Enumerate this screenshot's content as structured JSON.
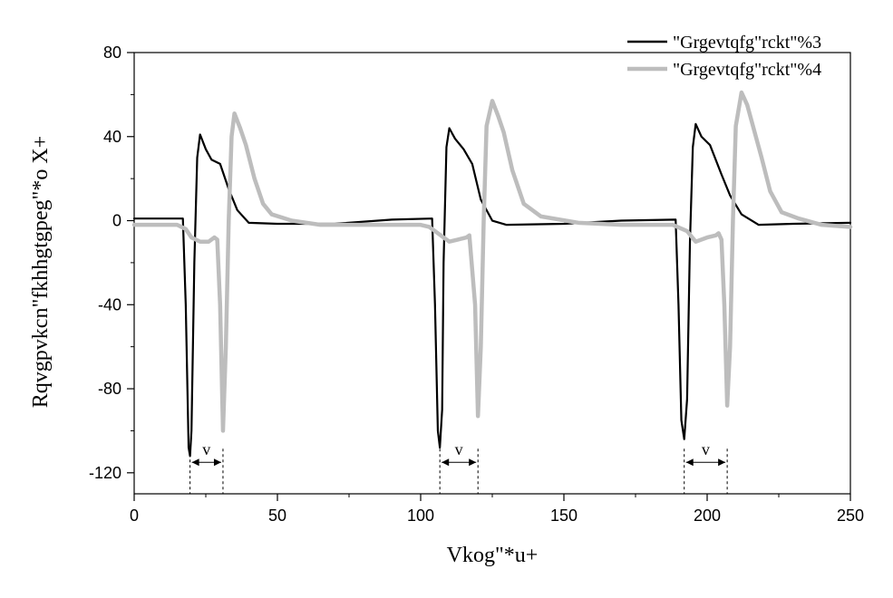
{
  "chart_data": {
    "type": "line",
    "title": "",
    "xlabel": "Vkog\"*u+",
    "ylabel": "Rqvgpvkcn\"fkhhgtgpeg\"*o X+",
    "xlim": [
      0,
      250
    ],
    "ylim": [
      -130,
      80
    ],
    "x_ticks": [
      0,
      50,
      100,
      150,
      200,
      250
    ],
    "x_tick_labels": [
      "0",
      "50",
      "100",
      "150",
      "200",
      "250"
    ],
    "y_ticks": [
      -120,
      -80,
      -40,
      0,
      40,
      80
    ],
    "y_tick_labels": [
      "-120",
      "-80",
      "-40",
      "0",
      "40",
      "80"
    ],
    "grid": false,
    "legend_position": "top-right",
    "colors": {
      "series1": "#000000",
      "series2": "#bdbdbd"
    },
    "series": [
      {
        "name": "\"Grgevtqfg\"rckt\"%3",
        "color": "#000000",
        "points": [
          [
            0,
            1
          ],
          [
            17,
            1
          ],
          [
            18,
            -40
          ],
          [
            19,
            -108
          ],
          [
            19.5,
            -112
          ],
          [
            20,
            -100
          ],
          [
            21,
            -20
          ],
          [
            22,
            30
          ],
          [
            23,
            41
          ],
          [
            25,
            34
          ],
          [
            27,
            29
          ],
          [
            30,
            27
          ],
          [
            33,
            15
          ],
          [
            36,
            5
          ],
          [
            40,
            -1
          ],
          [
            50,
            -1.5
          ],
          [
            70,
            -1.5
          ],
          [
            90,
            0.5
          ],
          [
            104,
            1
          ],
          [
            105,
            -40
          ],
          [
            106,
            -100
          ],
          [
            106.7,
            -108
          ],
          [
            107.5,
            -90
          ],
          [
            108,
            -20
          ],
          [
            109,
            35
          ],
          [
            110,
            44
          ],
          [
            112,
            39
          ],
          [
            115,
            34
          ],
          [
            118,
            27
          ],
          [
            121,
            10
          ],
          [
            125,
            0
          ],
          [
            130,
            -2
          ],
          [
            150,
            -1.5
          ],
          [
            170,
            0
          ],
          [
            189,
            0.5
          ],
          [
            190,
            -40
          ],
          [
            191,
            -95
          ],
          [
            192,
            -104
          ],
          [
            193,
            -85
          ],
          [
            194,
            -10
          ],
          [
            195,
            35
          ],
          [
            196,
            46
          ],
          [
            198,
            40
          ],
          [
            201,
            36
          ],
          [
            205,
            22
          ],
          [
            208,
            12
          ],
          [
            212,
            3
          ],
          [
            218,
            -2
          ],
          [
            230,
            -1.5
          ],
          [
            250,
            -1
          ]
        ]
      },
      {
        "name": "\"Grgevtqfg\"rckt\"%4",
        "color": "#bdbdbd",
        "points": [
          [
            0,
            -2
          ],
          [
            15,
            -2
          ],
          [
            18,
            -4
          ],
          [
            20,
            -8
          ],
          [
            23,
            -10
          ],
          [
            26,
            -10
          ],
          [
            28,
            -8
          ],
          [
            29,
            -9
          ],
          [
            30,
            -40
          ],
          [
            31,
            -100
          ],
          [
            32,
            -60
          ],
          [
            33,
            0
          ],
          [
            34,
            40
          ],
          [
            35,
            51
          ],
          [
            37,
            44
          ],
          [
            39,
            36
          ],
          [
            42,
            20
          ],
          [
            45,
            8
          ],
          [
            48,
            3
          ],
          [
            55,
            0
          ],
          [
            65,
            -2
          ],
          [
            80,
            -2
          ],
          [
            100,
            -2
          ],
          [
            103,
            -3
          ],
          [
            105,
            -5
          ],
          [
            108,
            -8
          ],
          [
            110,
            -10
          ],
          [
            113,
            -9
          ],
          [
            116,
            -8
          ],
          [
            117,
            -7
          ],
          [
            119,
            -40
          ],
          [
            120,
            -93
          ],
          [
            121,
            -60
          ],
          [
            122,
            0
          ],
          [
            123,
            45
          ],
          [
            125,
            57
          ],
          [
            127,
            50
          ],
          [
            129,
            42
          ],
          [
            132,
            24
          ],
          [
            136,
            8
          ],
          [
            142,
            2
          ],
          [
            155,
            -1
          ],
          [
            170,
            -2
          ],
          [
            188,
            -2
          ],
          [
            193,
            -5
          ],
          [
            196,
            -10
          ],
          [
            200,
            -8
          ],
          [
            203,
            -7
          ],
          [
            204,
            -6
          ],
          [
            205,
            -9
          ],
          [
            206,
            -40
          ],
          [
            207,
            -88
          ],
          [
            208,
            -60
          ],
          [
            209,
            0
          ],
          [
            210,
            45
          ],
          [
            212,
            61
          ],
          [
            214,
            55
          ],
          [
            216,
            45
          ],
          [
            219,
            30
          ],
          [
            222,
            14
          ],
          [
            226,
            4
          ],
          [
            232,
            1
          ],
          [
            240,
            -2
          ],
          [
            250,
            -3
          ]
        ]
      }
    ],
    "annotations": [
      {
        "label": "v",
        "from_x": 19.5,
        "to_x": 31,
        "y": -115
      },
      {
        "label": "v",
        "from_x": 106.7,
        "to_x": 120,
        "y": -115
      },
      {
        "label": "v",
        "from_x": 192,
        "to_x": 207,
        "y": -115
      }
    ],
    "legend": [
      {
        "label": "\"Grgevtqfg\"rckt\"%3",
        "color": "#000000"
      },
      {
        "label": "\"Grgevtqfg\"rckt\"%4",
        "color": "#bdbdbd"
      }
    ]
  }
}
